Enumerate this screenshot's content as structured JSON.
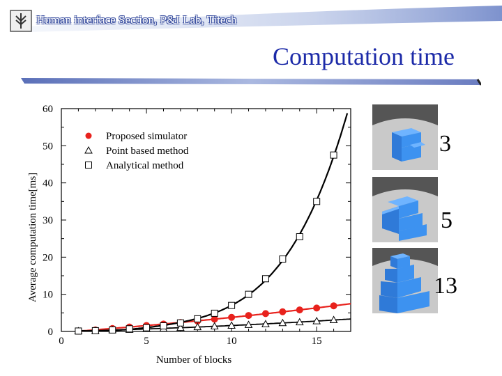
{
  "header": {
    "lab_name": "Human interface Section, P&I Lab, Titech",
    "slide_title": "Computation time"
  },
  "logo_icon": "titech-logo-icon",
  "colors": {
    "title": "#1c2aa8",
    "proposed": "#e8221d",
    "block": "#3b8fe8",
    "axis": "#000000"
  },
  "chart_data": {
    "type": "line",
    "xlabel": "Number of blocks",
    "ylabel": "Average computation time[ms]",
    "xlim": [
      0,
      17
    ],
    "ylim": [
      0,
      60
    ],
    "x_ticks": [
      0,
      5,
      10,
      15
    ],
    "y_ticks": [
      0,
      10,
      20,
      30,
      40,
      50,
      60
    ],
    "grid": false,
    "legend_position": "top-left",
    "series": [
      {
        "name": "Proposed simulator",
        "marker": "filled-circle",
        "x": [
          1,
          2,
          3,
          4,
          5,
          6,
          7,
          8,
          9,
          10,
          11,
          12,
          13,
          14,
          15,
          16
        ],
        "y": [
          0.1,
          0.4,
          0.8,
          1.2,
          1.6,
          2.0,
          2.4,
          2.8,
          3.3,
          3.8,
          4.3,
          4.8,
          5.3,
          5.8,
          6.3,
          6.9
        ]
      },
      {
        "name": "Point based method",
        "marker": "open-triangle",
        "x": [
          1,
          2,
          3,
          4,
          5,
          6,
          7,
          8,
          9,
          10,
          11,
          12,
          13,
          14,
          15,
          16
        ],
        "y": [
          0.1,
          0.2,
          0.4,
          0.5,
          0.7,
          0.8,
          1.0,
          1.2,
          1.4,
          1.6,
          1.8,
          2.0,
          2.3,
          2.5,
          2.8,
          3.1
        ]
      },
      {
        "name": "Analytical method",
        "marker": "open-square",
        "x": [
          1,
          2,
          3,
          4,
          5,
          6,
          7,
          8,
          9,
          10,
          11,
          12,
          13,
          14,
          15,
          16
        ],
        "y": [
          0.1,
          0.2,
          0.4,
          0.7,
          1.0,
          1.5,
          2.3,
          3.4,
          4.9,
          7.0,
          10.0,
          14.2,
          19.5,
          25.5,
          35.0,
          47.5
        ]
      }
    ]
  },
  "thumbnails": [
    {
      "label": "3"
    },
    {
      "label": "5"
    },
    {
      "label": "13"
    }
  ]
}
